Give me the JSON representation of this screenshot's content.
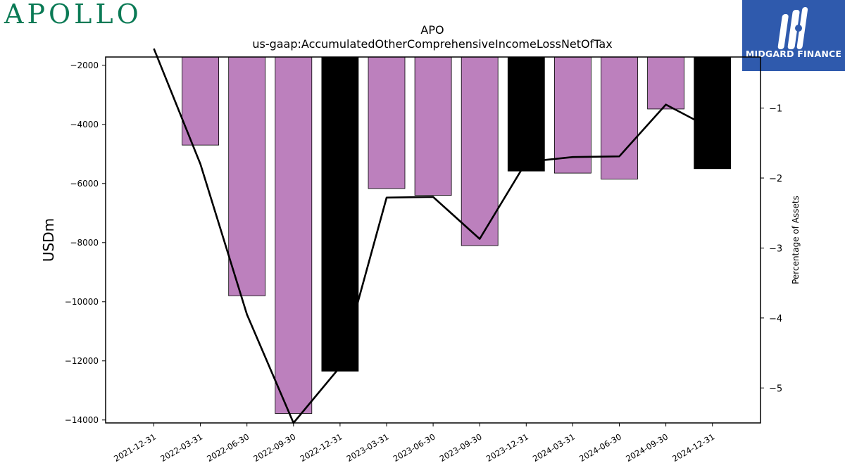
{
  "branding": {
    "left_logo_text": "APOLLO",
    "right_logo_text": "MIDGARD FINANCE",
    "right_logo_bg": "#2f5aad",
    "left_logo_color": "#0a7a55"
  },
  "chart_data": {
    "type": "bar",
    "title": "APO",
    "subtitle": "us-gaap:AccumulatedOtherComprehensiveIncomeLossNetOfTax",
    "ylabel": "USDm",
    "ylabel_right": "Percentage of Assets",
    "categories": [
      "2021-12-31",
      "2022-03-31",
      "2022-06-30",
      "2022-09-30",
      "2022-12-31",
      "2023-03-31",
      "2023-06-30",
      "2023-09-30",
      "2023-12-31",
      "2024-03-31",
      "2024-06-30",
      "2024-09-30",
      "2024-12-31"
    ],
    "series": [
      {
        "kind": "bar",
        "axis": "left",
        "values": [
          -1700,
          -4700,
          -9800,
          -13780,
          -12350,
          -6170,
          -6400,
          -8100,
          -5580,
          -5650,
          -5850,
          -3480,
          -5500
        ],
        "colors": [
          "#bc80bd",
          "#bc80bd",
          "#bc80bd",
          "#bc80bd",
          "#000000",
          "#bc80bd",
          "#bc80bd",
          "#bc80bd",
          "#000000",
          "#bc80bd",
          "#bc80bd",
          "#bc80bd",
          "#000000"
        ]
      },
      {
        "kind": "line",
        "axis": "right",
        "color": "#000000",
        "values": [
          -0.15,
          -1.8,
          -3.95,
          -5.5,
          -4.7,
          -2.28,
          -2.27,
          -2.87,
          -1.77,
          -1.7,
          -1.69,
          -0.95,
          -1.3
        ]
      }
    ],
    "yticks_left": [
      -2000,
      -4000,
      -6000,
      -8000,
      -10000,
      -12000,
      -14000
    ],
    "yticks_right": [
      -1,
      -2,
      -3,
      -4,
      -5
    ],
    "ylim_left": [
      -14100,
      -1720
    ],
    "ylim_right": [
      -5.5,
      -0.27
    ],
    "grid": false,
    "legend": "none"
  }
}
